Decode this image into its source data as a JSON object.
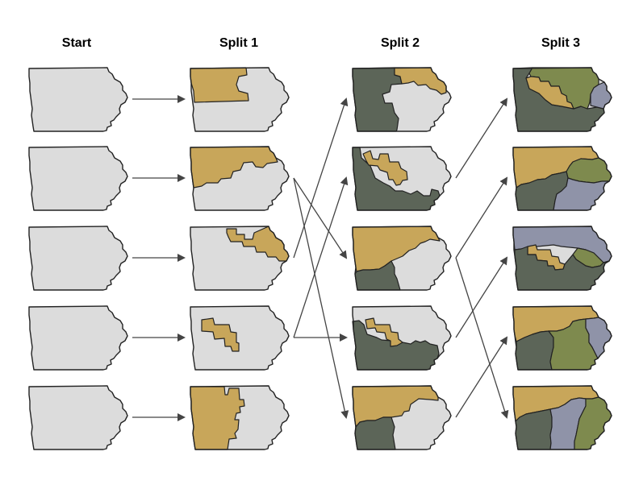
{
  "columns": [
    "Start",
    "Split 1",
    "Split 2",
    "Split 3"
  ],
  "colors": {
    "outline": "#222222",
    "unassigned": "#dcdcdc",
    "gold": "#c8a65a",
    "dark": "#5c6558",
    "olive": "#7e8a4e",
    "lavender": "#8f93a8",
    "arrow": "#444444"
  },
  "maps": [
    {
      "col": 0,
      "row": 0,
      "fills": [
        "unassigned"
      ]
    },
    {
      "col": 0,
      "row": 1,
      "fills": [
        "unassigned"
      ]
    },
    {
      "col": 0,
      "row": 2,
      "fills": [
        "unassigned"
      ]
    },
    {
      "col": 0,
      "row": 3,
      "fills": [
        "unassigned"
      ]
    },
    {
      "col": 0,
      "row": 4,
      "fills": [
        "unassigned"
      ]
    },
    {
      "col": 1,
      "row": 0,
      "fills": [
        "gold",
        "unassigned"
      ]
    },
    {
      "col": 1,
      "row": 1,
      "fills": [
        "gold",
        "unassigned"
      ]
    },
    {
      "col": 1,
      "row": 2,
      "fills": [
        "gold",
        "unassigned"
      ]
    },
    {
      "col": 1,
      "row": 3,
      "fills": [
        "gold",
        "unassigned"
      ]
    },
    {
      "col": 1,
      "row": 4,
      "fills": [
        "gold",
        "unassigned"
      ]
    },
    {
      "col": 2,
      "row": 0,
      "fills": [
        "dark",
        "gold",
        "unassigned"
      ]
    },
    {
      "col": 2,
      "row": 1,
      "fills": [
        "dark",
        "gold",
        "unassigned"
      ]
    },
    {
      "col": 2,
      "row": 2,
      "fills": [
        "gold",
        "dark",
        "unassigned"
      ]
    },
    {
      "col": 2,
      "row": 3,
      "fills": [
        "dark",
        "gold",
        "unassigned"
      ]
    },
    {
      "col": 2,
      "row": 4,
      "fills": [
        "gold",
        "dark",
        "unassigned"
      ]
    },
    {
      "col": 3,
      "row": 0,
      "fills": [
        "dark",
        "olive",
        "gold",
        "lavender"
      ]
    },
    {
      "col": 3,
      "row": 1,
      "fills": [
        "gold",
        "olive",
        "dark",
        "lavender"
      ]
    },
    {
      "col": 3,
      "row": 2,
      "fills": [
        "lavender",
        "gold",
        "olive",
        "dark"
      ]
    },
    {
      "col": 3,
      "row": 3,
      "fills": [
        "gold",
        "dark",
        "olive",
        "lavender"
      ]
    },
    {
      "col": 3,
      "row": 4,
      "fills": [
        "gold",
        "dark",
        "lavender",
        "olive"
      ]
    }
  ],
  "links": [
    {
      "from": [
        0,
        0
      ],
      "to": [
        1,
        0
      ]
    },
    {
      "from": [
        0,
        1
      ],
      "to": [
        1,
        1
      ]
    },
    {
      "from": [
        0,
        2
      ],
      "to": [
        1,
        2
      ]
    },
    {
      "from": [
        0,
        3
      ],
      "to": [
        1,
        3
      ]
    },
    {
      "from": [
        0,
        4
      ],
      "to": [
        1,
        4
      ]
    },
    {
      "from": [
        1,
        1
      ],
      "to": [
        2,
        2
      ]
    },
    {
      "from": [
        1,
        1
      ],
      "to": [
        2,
        4
      ]
    },
    {
      "from": [
        1,
        2
      ],
      "to": [
        2,
        0
      ]
    },
    {
      "from": [
        1,
        3
      ],
      "to": [
        2,
        1
      ]
    },
    {
      "from": [
        1,
        3
      ],
      "to": [
        2,
        3
      ]
    },
    {
      "from": [
        2,
        1
      ],
      "to": [
        3,
        0
      ]
    },
    {
      "from": [
        2,
        2
      ],
      "to": [
        3,
        1
      ]
    },
    {
      "from": [
        2,
        2
      ],
      "to": [
        3,
        4
      ]
    },
    {
      "from": [
        2,
        3
      ],
      "to": [
        3,
        2
      ]
    },
    {
      "from": [
        2,
        4
      ],
      "to": [
        3,
        3
      ]
    }
  ]
}
